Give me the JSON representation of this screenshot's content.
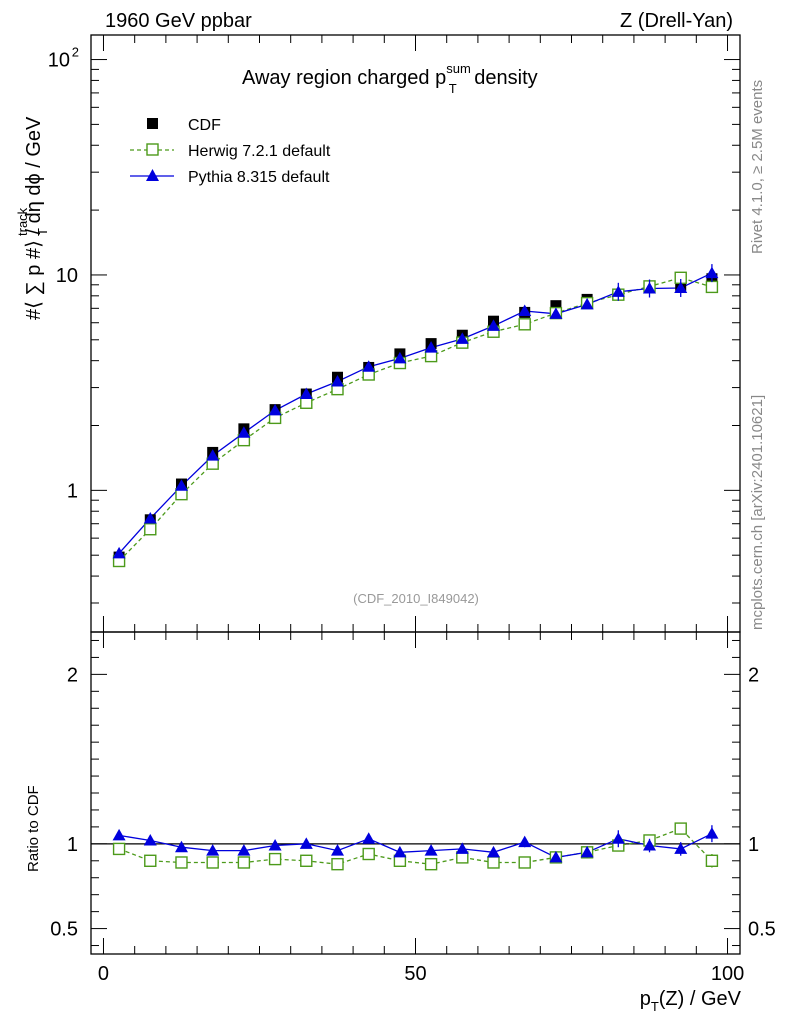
{
  "header": {
    "left": "1960 GeV ppbar",
    "right": "Z (Drell-Yan)"
  },
  "side": {
    "rivet": "Rivet 4.1.0, ≥ 2.5M events",
    "mcplots": "mcplots.cern.ch [arXiv:2401.10621]"
  },
  "colors": {
    "cdf": "#000000",
    "herwig": "#4c9a1a",
    "pythia": "#0000dd"
  },
  "chart_data": {
    "type": "scatter",
    "title_prefix": "Away region charged p",
    "title_sup": "sum",
    "title_sub": "T",
    "title_suffix": " density",
    "analysis_id": "(CDF_2010_I849042)",
    "ylabel": "#⟨ ∑ p  #⟩ / dη dϕ / GeV",
    "ylabel_sup": "track",
    "ylabel_sub": "T",
    "ratio_ylabel": "Ratio to CDF",
    "xlabel": "p_T(Z) / GeV",
    "xlim": [
      -2,
      102
    ],
    "ylim": [
      0.22,
      130
    ],
    "ratio_ylim": [
      0.35,
      2.25
    ],
    "yscale": "log",
    "x_ticks": [
      "0",
      "50",
      "100"
    ],
    "y_ticks": [
      "1",
      "10",
      "10²"
    ],
    "ratio_ticks": [
      "0.5",
      "1",
      "2"
    ],
    "x": [
      2.5,
      7.5,
      12.5,
      17.5,
      22.5,
      27.5,
      32.5,
      37.5,
      42.5,
      47.5,
      52.5,
      57.5,
      62.5,
      67.5,
      72.5,
      77.5,
      82.5,
      87.5,
      92.5,
      97.5
    ],
    "series": [
      {
        "name": "CDF",
        "marker": "square-filled",
        "values": [
          0.49,
          0.73,
          1.07,
          1.5,
          1.93,
          2.37,
          2.8,
          3.35,
          3.72,
          4.3,
          4.8,
          5.25,
          6.1,
          6.7,
          7.2,
          7.7,
          8.1,
          8.8,
          8.95,
          9.6
        ]
      },
      {
        "name": "Herwig 7.2.1 default",
        "marker": "square-open",
        "line": "dashed",
        "values": [
          0.47,
          0.66,
          0.96,
          1.33,
          1.71,
          2.17,
          2.55,
          2.95,
          3.45,
          3.9,
          4.2,
          4.85,
          5.45,
          5.9,
          6.65,
          7.4,
          8.1,
          8.85,
          9.7,
          8.8
        ]
      },
      {
        "name": "Pythia 8.315 default",
        "marker": "triangle",
        "line": "solid",
        "values": [
          0.51,
          0.74,
          1.05,
          1.45,
          1.85,
          2.35,
          2.8,
          3.2,
          3.75,
          4.1,
          4.6,
          5.05,
          5.8,
          6.8,
          6.6,
          7.3,
          8.35,
          8.65,
          8.7,
          10.2
        ]
      }
    ],
    "ratio_series": [
      {
        "name": "Herwig 7.2.1 default",
        "values": [
          0.97,
          0.9,
          0.89,
          0.89,
          0.89,
          0.91,
          0.9,
          0.88,
          0.94,
          0.9,
          0.88,
          0.92,
          0.89,
          0.89,
          0.92,
          0.95,
          0.99,
          1.02,
          1.09,
          0.9
        ]
      },
      {
        "name": "Pythia 8.315 default",
        "values": [
          1.05,
          1.02,
          0.98,
          0.96,
          0.96,
          0.99,
          1.0,
          0.96,
          1.03,
          0.95,
          0.96,
          0.97,
          0.95,
          1.01,
          0.92,
          0.95,
          1.03,
          0.99,
          0.97,
          1.06
        ]
      }
    ]
  }
}
